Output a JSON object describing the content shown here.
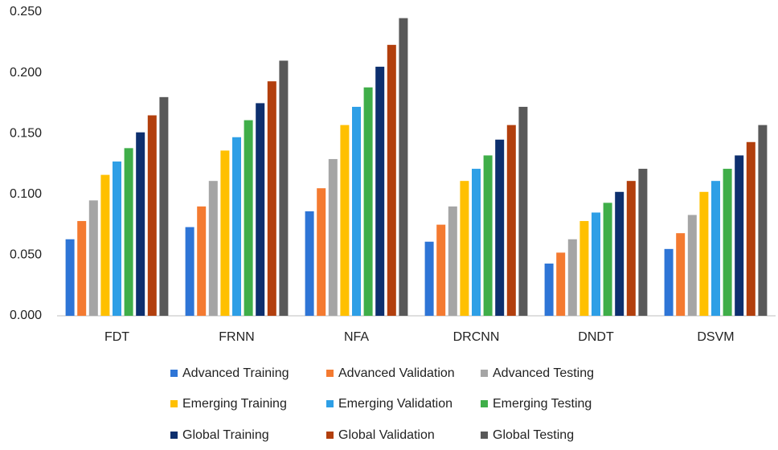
{
  "chart_data": {
    "type": "bar",
    "categories": [
      "FDT",
      "FRNN",
      "NFA",
      "DRCNN",
      "DNDT",
      "DSVM"
    ],
    "series": [
      {
        "name": "Advanced Training",
        "color": "#2e75d6",
        "values": [
          0.063,
          0.073,
          0.086,
          0.061,
          0.043,
          0.055
        ]
      },
      {
        "name": "Advanced Validation",
        "color": "#f47a30",
        "values": [
          0.078,
          0.09,
          0.105,
          0.075,
          0.052,
          0.068
        ]
      },
      {
        "name": "Advanced Testing",
        "color": "#a5a5a5",
        "values": [
          0.095,
          0.111,
          0.129,
          0.09,
          0.063,
          0.083
        ]
      },
      {
        "name": "Emerging Training",
        "color": "#ffc000",
        "values": [
          0.116,
          0.136,
          0.157,
          0.111,
          0.078,
          0.102
        ]
      },
      {
        "name": "Emerging Validation",
        "color": "#2e9fe6",
        "values": [
          0.127,
          0.147,
          0.172,
          0.121,
          0.085,
          0.111
        ]
      },
      {
        "name": "Emerging Testing",
        "color": "#3fae49",
        "values": [
          0.138,
          0.161,
          0.188,
          0.132,
          0.093,
          0.121
        ]
      },
      {
        "name": "Global Training",
        "color": "#0d2f6e",
        "values": [
          0.151,
          0.175,
          0.205,
          0.145,
          0.102,
          0.132
        ]
      },
      {
        "name": "Global Validation",
        "color": "#b23f0d",
        "values": [
          0.165,
          0.193,
          0.223,
          0.157,
          0.111,
          0.143
        ]
      },
      {
        "name": "Global Testing",
        "color": "#595959",
        "values": [
          0.18,
          0.21,
          0.245,
          0.172,
          0.121,
          0.157
        ]
      }
    ],
    "ylim": [
      0,
      0.25
    ],
    "yticks": [
      {
        "value": 0,
        "label": "0.000"
      },
      {
        "value": 0.05,
        "label": "0.050"
      },
      {
        "value": 0.1,
        "label": "0.100"
      },
      {
        "value": 0.15,
        "label": "0.150"
      },
      {
        "value": 0.2,
        "label": "0.200"
      },
      {
        "value": 0.25,
        "label": "0.250"
      }
    ],
    "grid": false,
    "legend": "bottom"
  }
}
